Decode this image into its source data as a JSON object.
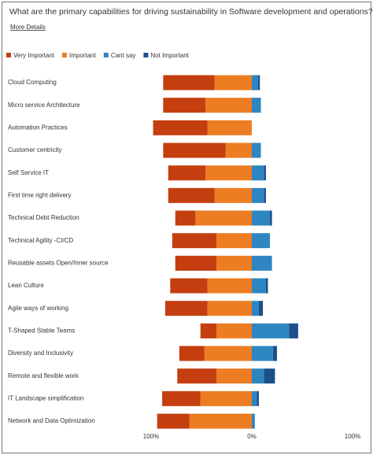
{
  "chart_data": {
    "type": "diverging-bar",
    "title": "What are the primary capabilities for driving sustainability in Software development and operations?",
    "link": "More Details",
    "categories": [
      "Cloud Computing",
      "Micro service Architecture",
      "Automation Practices",
      "Customer centricity",
      "Self Service IT",
      "First time right delivery",
      "Technical Debt Reduction",
      "Technical Agility -CI/CD",
      "Reusable assets Open/Inner source",
      "Lean Culture",
      "Agile ways of working",
      "T-Shaped Stable Teams",
      "Diversity and Inclusivity",
      "Remote and flexible work",
      "IT Landscape simplification",
      "Network and Data Optimization"
    ],
    "series": [
      {
        "name": "Very Important",
        "color": "#c43e0f",
        "side": "left",
        "values": [
          51,
          42,
          54,
          62,
          37,
          46,
          20,
          44,
          41,
          37,
          42,
          16,
          25,
          39,
          38,
          32
        ]
      },
      {
        "name": "Important",
        "color": "#ed7d22",
        "side": "left",
        "values": [
          37,
          46,
          44,
          26,
          46,
          37,
          56,
          35,
          35,
          44,
          44,
          35,
          47,
          35,
          51,
          62
        ]
      },
      {
        "name": "Cant say",
        "color": "#2e86c1",
        "side": "right",
        "values": [
          6,
          9,
          0,
          9,
          12,
          12,
          18,
          18,
          20,
          14,
          7,
          37,
          21,
          12,
          5,
          3
        ]
      },
      {
        "name": "Not Important",
        "color": "#1d4f8a",
        "side": "right",
        "values": [
          2,
          0,
          0,
          0,
          2,
          2,
          2,
          0,
          0,
          2,
          4,
          9,
          4,
          11,
          2,
          0
        ]
      }
    ],
    "xlim": [
      -100,
      100
    ],
    "xticks": [
      {
        "value": -100,
        "label": "100%"
      },
      {
        "value": 0,
        "label": "0%"
      },
      {
        "value": 100,
        "label": "100%"
      }
    ]
  }
}
